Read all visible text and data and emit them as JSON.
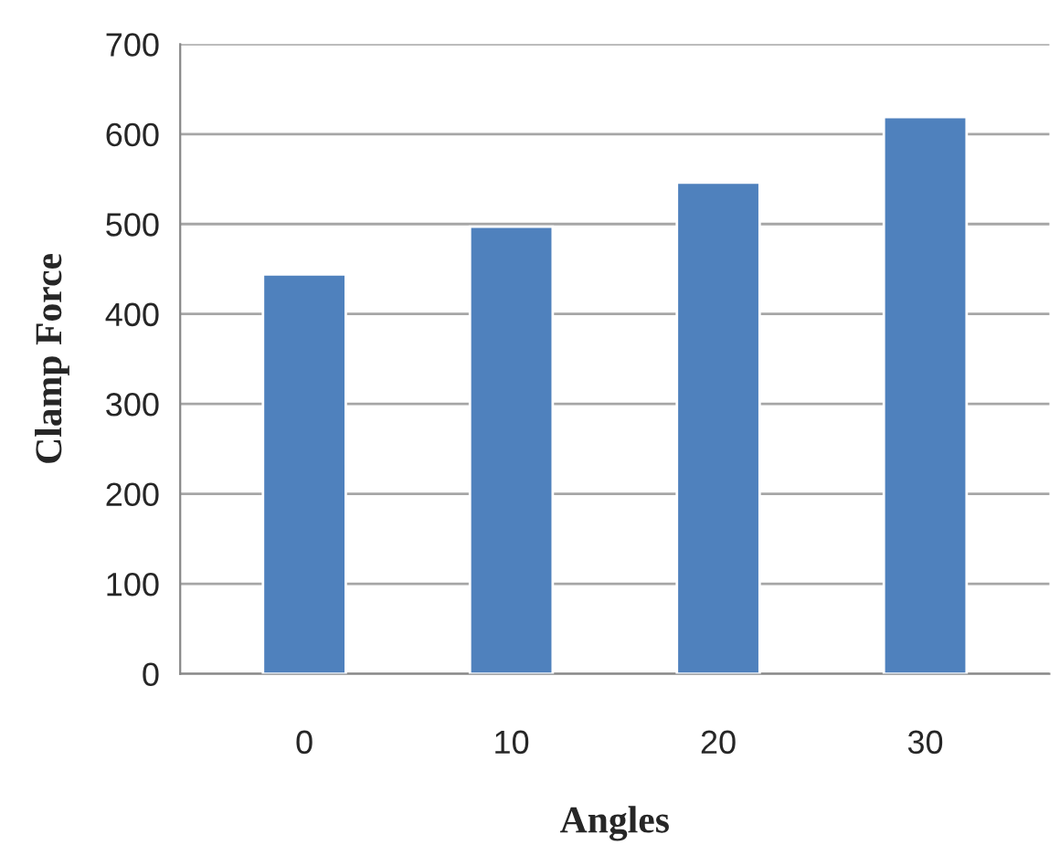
{
  "chart_data": {
    "type": "bar",
    "xlabel": "Angles",
    "ylabel": "Clamp Force",
    "categories": [
      "0",
      "10",
      "20",
      "30"
    ],
    "values": [
      444,
      497,
      546,
      619
    ],
    "color": "#4f81bd",
    "ylim": [
      0,
      700
    ],
    "yticks": [
      0,
      100,
      200,
      300,
      400,
      500,
      600,
      700
    ],
    "grid": "y",
    "legend": false
  }
}
